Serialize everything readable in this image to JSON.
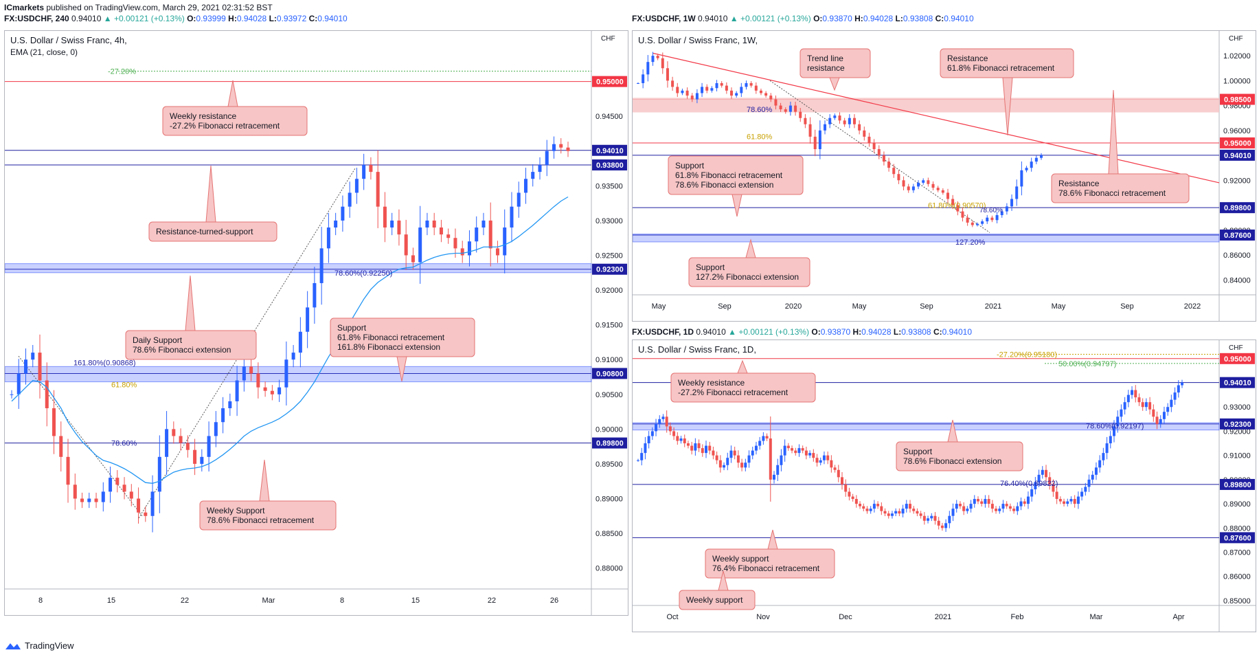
{
  "page": {
    "publisher": "ICmarkets",
    "published_text": "published on TradingView.com, March 29, 2021 02:31:52 BST",
    "brand": "TradingView"
  },
  "colors": {
    "bull": "#2962ff",
    "bear": "#ef5350",
    "ema": "#2196f3",
    "zone_blue": "#3d5afe",
    "zone_red": "#f7c5c5",
    "callout_bg": "#f7c5c5",
    "callout_border": "#e57373",
    "level_red": "#f23645",
    "level_blue": "#1e1ea0",
    "fib_green": "#4caf50",
    "fib_orange": "#c8a000"
  },
  "panels": [
    {
      "id": "h4",
      "header": {
        "symbol": "FX:USDCHF, 240",
        "last": "0.94010",
        "change": "+0.00121 (+0.13%)",
        "o": "0.93999",
        "h": "0.94028",
        "l": "0.93972",
        "c": "0.94010"
      },
      "title": "U.S. Dollar / Swiss Franc, 4h,",
      "subtitle": "EMA (21, close, 0)",
      "unit": "CHF",
      "price_ticks": [
        "0.95000",
        "0.94500",
        "0.94000",
        "0.93500",
        "0.93000",
        "0.92500",
        "0.92000",
        "0.91500",
        "0.91000",
        "0.90500",
        "0.90000",
        "0.89500",
        "0.89000",
        "0.88500",
        "0.88000"
      ],
      "time_labels": [
        "8",
        "15",
        "22",
        "Mar",
        "8",
        "15",
        "22",
        "26"
      ],
      "levels": [
        {
          "price": 0.95,
          "label": "0.95000",
          "color": "red"
        },
        {
          "price": 0.9401,
          "label": "0.94010",
          "color": "blue"
        },
        {
          "price": 0.938,
          "label": "0.93800",
          "color": "blue"
        },
        {
          "price": 0.923,
          "label": "0.92300",
          "color": "blue"
        },
        {
          "price": 0.908,
          "label": "0.90800",
          "color": "blue"
        },
        {
          "price": 0.898,
          "label": "0.89800",
          "color": "blue"
        }
      ],
      "fib_labels": [
        {
          "text": "-27.20%",
          "color": "green"
        },
        {
          "text": "78.60%(0.92250)",
          "color": "blue"
        },
        {
          "text": "161.80%(0.90868)",
          "color": "blue"
        },
        {
          "text": "61.80%",
          "color": "orange"
        },
        {
          "text": "78.60%",
          "color": "blue"
        }
      ],
      "callouts": [
        {
          "lines": [
            "Weekly resistance",
            "-27.2% Fibonacci retracement"
          ]
        },
        {
          "lines": [
            "Resistance-turned-support"
          ]
        },
        {
          "lines": [
            "Daily Support",
            "78.6% Fibonacci extension"
          ]
        },
        {
          "lines": [
            "Support",
            "61.8% Fibonacci retracement",
            "161.8% Fibonacci extension"
          ]
        },
        {
          "lines": [
            "Weekly Support",
            "78.6% Fibonacci retracement"
          ]
        }
      ]
    },
    {
      "id": "w1",
      "header": {
        "symbol": "FX:USDCHF, 1W",
        "last": "0.94010",
        "change": "+0.00121 (+0.13%)",
        "o": "0.93870",
        "h": "0.94028",
        "l": "0.93808",
        "c": "0.94010"
      },
      "title": "U.S. Dollar / Swiss Franc, 1W,",
      "unit": "CHF",
      "price_ticks": [
        "1.02000",
        "1.00000",
        "0.98000",
        "0.96000",
        "0.94000",
        "0.92000",
        "0.90000",
        "0.88000",
        "0.86000",
        "0.84000"
      ],
      "time_labels": [
        "May",
        "Sep",
        "2020",
        "May",
        "Sep",
        "2021",
        "May",
        "Sep",
        "2022"
      ],
      "levels": [
        {
          "price": 0.985,
          "label": "0.98500",
          "color": "red"
        },
        {
          "price": 0.95,
          "label": "0.95000",
          "color": "red"
        },
        {
          "price": 0.9401,
          "label": "0.94010",
          "color": "blue"
        },
        {
          "price": 0.898,
          "label": "0.89800",
          "color": "blue"
        },
        {
          "price": 0.876,
          "label": "0.87600",
          "color": "blue"
        }
      ],
      "fib_labels": [
        {
          "text": "78.60%",
          "color": "blue"
        },
        {
          "text": "61.80%",
          "color": "orange"
        },
        {
          "text": "61.80%(0.90570)",
          "color": "orange"
        },
        {
          "text": "78.60%",
          "color": "blue"
        },
        {
          "text": "127.20%",
          "color": "blue"
        }
      ],
      "callouts": [
        {
          "lines": [
            "Trend line",
            "resistance"
          ]
        },
        {
          "lines": [
            "Resistance",
            "61.8% Fibonacci retracement"
          ]
        },
        {
          "lines": [
            "Support",
            "61.8% Fibonacci retracement",
            "78.6% Fibonacci extension"
          ]
        },
        {
          "lines": [
            "Resistance",
            "78.6% Fibonacci retracement"
          ]
        },
        {
          "lines": [
            "Support",
            "127.2% Fibonacci extension"
          ]
        }
      ]
    },
    {
      "id": "d1",
      "header": {
        "symbol": "FX:USDCHF, 1D",
        "last": "0.94010",
        "change": "+0.00121 (+0.13%)",
        "o": "0.93870",
        "h": "0.94028",
        "l": "0.93808",
        "c": "0.94010"
      },
      "title": "U.S. Dollar / Swiss Franc, 1D,",
      "unit": "CHF",
      "price_ticks": [
        "0.95000",
        "0.94000",
        "0.93000",
        "0.92000",
        "0.91000",
        "0.90000",
        "0.89000",
        "0.88000",
        "0.87000",
        "0.86000",
        "0.85000"
      ],
      "time_labels": [
        "Oct",
        "Nov",
        "Dec",
        "2021",
        "Feb",
        "Mar",
        "Apr"
      ],
      "levels": [
        {
          "price": 0.95,
          "label": "0.95000",
          "color": "red"
        },
        {
          "price": 0.9401,
          "label": "0.94010",
          "color": "blue"
        },
        {
          "price": 0.923,
          "label": "0.92300",
          "color": "blue"
        },
        {
          "price": 0.898,
          "label": "0.89800",
          "color": "blue"
        },
        {
          "price": 0.876,
          "label": "0.87600",
          "color": "blue"
        }
      ],
      "fib_labels": [
        {
          "text": "-27.20%(0.95180)",
          "color": "orange"
        },
        {
          "text": "50.00%(0.94797)",
          "color": "green"
        },
        {
          "text": "78.60%(0.92197)",
          "color": "blue"
        },
        {
          "text": "76.40%(0.89822)",
          "color": "blue"
        }
      ],
      "callouts": [
        {
          "lines": [
            "Weekly resistance",
            "-27.2% Fibonacci retracement"
          ]
        },
        {
          "lines": [
            "Support",
            "78.6% Fibonacci extension"
          ]
        },
        {
          "lines": [
            "Weekly support",
            "76.4% Fibonacci retracement"
          ]
        },
        {
          "lines": [
            "Weekly support"
          ]
        }
      ]
    }
  ],
  "chart_data": [
    {
      "type": "candlestick",
      "title": "U.S. Dollar / Swiss Franc, 4h,",
      "ylim": [
        0.877,
        0.9555
      ],
      "series": [
        {
          "name": "USDCHF",
          "values": [
            0.905,
            0.908,
            0.91,
            0.911,
            0.907,
            0.903,
            0.899,
            0.896,
            0.892,
            0.89,
            0.8895,
            0.89,
            0.8895,
            0.891,
            0.893,
            0.892,
            0.891,
            0.89,
            0.888,
            0.8875,
            0.891,
            0.896,
            0.9,
            0.899,
            0.898,
            0.897,
            0.895,
            0.896,
            0.899,
            0.901,
            0.903,
            0.904,
            0.907,
            0.909,
            0.908,
            0.906,
            0.9055,
            0.905,
            0.906,
            0.91,
            0.911,
            0.914,
            0.9175,
            0.921,
            0.926,
            0.929,
            0.93,
            0.932,
            0.934,
            0.936,
            0.938,
            0.937,
            0.932,
            0.929,
            0.93,
            0.928,
            0.925,
            0.924,
            0.929,
            0.93,
            0.929,
            0.928,
            0.9275,
            0.926,
            0.925,
            0.927,
            0.929,
            0.93,
            0.926,
            0.925,
            0.929,
            0.932,
            0.934,
            0.936,
            0.937,
            0.938,
            0.94,
            0.941,
            0.9405,
            0.94
          ]
        },
        {
          "name": "EMA (21, close, 0)",
          "values": [
            0.904,
            0.905,
            0.906,
            0.907,
            0.9068,
            0.906,
            0.9045,
            0.903,
            0.901,
            0.8995,
            0.8982,
            0.8972,
            0.8962,
            0.8955,
            0.8952,
            0.8948,
            0.8943,
            0.8937,
            0.893,
            0.8923,
            0.8922,
            0.8925,
            0.8932,
            0.8938,
            0.8941,
            0.8943,
            0.8944,
            0.8946,
            0.895,
            0.8956,
            0.8963,
            0.8971,
            0.898,
            0.899,
            0.8997,
            0.9002,
            0.9006,
            0.901,
            0.9015,
            0.9022,
            0.903,
            0.904,
            0.9053,
            0.9068,
            0.9086,
            0.9104,
            0.912,
            0.9137,
            0.9153,
            0.917,
            0.9187,
            0.9201,
            0.9211,
            0.9218,
            0.9225,
            0.923,
            0.9232,
            0.9233,
            0.9238,
            0.9243,
            0.9247,
            0.925,
            0.9252,
            0.9253,
            0.9253,
            0.9255,
            0.9258,
            0.9262,
            0.9262,
            0.9262,
            0.9265,
            0.927,
            0.9277,
            0.9285,
            0.9293,
            0.9302,
            0.9311,
            0.932,
            0.9328,
            0.9334
          ]
        }
      ]
    },
    {
      "type": "candlestick",
      "title": "U.S. Dollar / Swiss Franc, 1W,",
      "ylim": [
        0.828,
        1.03
      ],
      "series": [
        {
          "name": "USDCHF",
          "values": [
            0.998,
            1.005,
            1.015,
            1.02,
            1.018,
            1.01,
            1.0,
            0.995,
            0.99,
            0.992,
            0.988,
            0.985,
            0.99,
            0.995,
            0.992,
            0.994,
            0.998,
            0.996,
            0.992,
            0.988,
            0.99,
            0.995,
            0.998,
            0.996,
            0.992,
            0.99,
            0.988,
            0.985,
            0.98,
            0.977,
            0.975,
            0.98,
            0.975,
            0.97,
            0.965,
            0.955,
            0.945,
            0.96,
            0.965,
            0.97,
            0.972,
            0.968,
            0.965,
            0.97,
            0.965,
            0.96,
            0.955,
            0.95,
            0.945,
            0.94,
            0.935,
            0.93,
            0.925,
            0.92,
            0.915,
            0.912,
            0.915,
            0.918,
            0.92,
            0.917,
            0.914,
            0.912,
            0.91,
            0.905,
            0.9,
            0.895,
            0.89,
            0.886,
            0.884,
            0.885,
            0.887,
            0.89,
            0.888,
            0.892,
            0.895,
            0.899,
            0.905,
            0.915,
            0.928,
            0.93,
            0.935,
            0.938,
            0.9401
          ]
        }
      ]
    },
    {
      "type": "candlestick",
      "title": "U.S. Dollar / Swiss Franc, 1D,",
      "ylim": [
        0.848,
        0.9525
      ],
      "series": [
        {
          "name": "USDCHF",
          "values": [
            0.908,
            0.911,
            0.915,
            0.918,
            0.92,
            0.923,
            0.925,
            0.926,
            0.922,
            0.92,
            0.918,
            0.916,
            0.917,
            0.915,
            0.914,
            0.912,
            0.915,
            0.913,
            0.911,
            0.914,
            0.912,
            0.91,
            0.908,
            0.905,
            0.906,
            0.909,
            0.912,
            0.91,
            0.907,
            0.905,
            0.907,
            0.91,
            0.912,
            0.914,
            0.916,
            0.918,
            0.917,
            0.9,
            0.902,
            0.906,
            0.91,
            0.914,
            0.913,
            0.912,
            0.911,
            0.913,
            0.912,
            0.91,
            0.911,
            0.909,
            0.907,
            0.908,
            0.91,
            0.908,
            0.905,
            0.904,
            0.901,
            0.898,
            0.895,
            0.893,
            0.892,
            0.89,
            0.889,
            0.888,
            0.887,
            0.888,
            0.89,
            0.889,
            0.887,
            0.886,
            0.885,
            0.886,
            0.887,
            0.886,
            0.888,
            0.89,
            0.888,
            0.887,
            0.886,
            0.885,
            0.883,
            0.884,
            0.885,
            0.883,
            0.881,
            0.88,
            0.882,
            0.885,
            0.888,
            0.89,
            0.889,
            0.887,
            0.888,
            0.89,
            0.892,
            0.891,
            0.89,
            0.892,
            0.89,
            0.888,
            0.887,
            0.888,
            0.89,
            0.889,
            0.888,
            0.887,
            0.889,
            0.891,
            0.89,
            0.893,
            0.896,
            0.899,
            0.902,
            0.904,
            0.901,
            0.898,
            0.895,
            0.892,
            0.891,
            0.89,
            0.891,
            0.892,
            0.89,
            0.893,
            0.895,
            0.897,
            0.9,
            0.902,
            0.905,
            0.908,
            0.911,
            0.915,
            0.918,
            0.922,
            0.926,
            0.929,
            0.932,
            0.935,
            0.937,
            0.934,
            0.932,
            0.93,
            0.932,
            0.929,
            0.926,
            0.923,
            0.925,
            0.928,
            0.93,
            0.933,
            0.936,
            0.939,
            0.9401
          ]
        }
      ]
    }
  ]
}
